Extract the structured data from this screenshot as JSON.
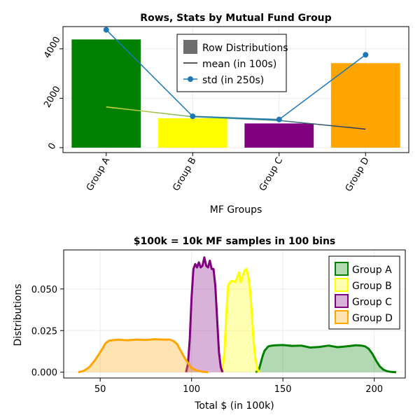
{
  "chart_data": [
    {
      "type": "bar",
      "title": "Rows, Stats by Mutual Fund Group",
      "xlabel": "MF Groups",
      "ylabel": "",
      "categories": [
        "Group A",
        "Group B",
        "Group C",
        "Group D"
      ],
      "ylim": [
        -200,
        4900
      ],
      "yticks": [
        0,
        2000,
        4000
      ],
      "ytick_labels": [
        "0",
        "2000",
        "4000"
      ],
      "grid": true,
      "legend_position": "top-center",
      "bar_colors": [
        "#008000",
        "#ffff00",
        "#800080",
        "#ffa500"
      ],
      "series": [
        {
          "name": "Row Distributions",
          "type": "bar",
          "values": [
            4380,
            1190,
            980,
            3420
          ]
        },
        {
          "name": "mean (in 100s)",
          "type": "line",
          "values": [
            1650,
            1250,
            1100,
            750
          ]
        },
        {
          "name": "std (in 250s)",
          "type": "line-marker",
          "color": "#1f77b4",
          "values": [
            4770,
            1270,
            1140,
            3760
          ]
        }
      ]
    },
    {
      "type": "area",
      "title": "$100k = 10k MF samples in 100 bins",
      "xlabel": "Total $ (in 100k)",
      "ylabel": "Distributions",
      "xlim": [
        30,
        217
      ],
      "ylim": [
        -0.0035,
        0.0735
      ],
      "xticks": [
        50,
        100,
        150,
        200
      ],
      "xtick_labels": [
        "50",
        "100",
        "150",
        "200"
      ],
      "yticks": [
        0,
        0.025,
        0.05
      ],
      "ytick_labels": [
        "0.000",
        "0.025",
        "0.050"
      ],
      "grid": true,
      "legend_position": "top-right",
      "series": [
        {
          "name": "Group A",
          "color": "#008000",
          "x": [
            135,
            136,
            137,
            138,
            139,
            140,
            142,
            144,
            146,
            150,
            155,
            160,
            165,
            170,
            175,
            180,
            185,
            190,
            193,
            195,
            197,
            199,
            201,
            203,
            205,
            207,
            209,
            212
          ],
          "y": [
            0,
            0.0005,
            0.002,
            0.006,
            0.01,
            0.013,
            0.0155,
            0.016,
            0.0162,
            0.0163,
            0.0158,
            0.016,
            0.0148,
            0.0152,
            0.016,
            0.015,
            0.0155,
            0.0162,
            0.016,
            0.0155,
            0.014,
            0.011,
            0.007,
            0.0035,
            0.0015,
            0.0006,
            0.0002,
            0
          ]
        },
        {
          "name": "Group B",
          "color": "#ffff00",
          "x": [
            116,
            117,
            118,
            119,
            120,
            121,
            122,
            124,
            125,
            126,
            127,
            128,
            129,
            130,
            131,
            132,
            133,
            134,
            135,
            136,
            137
          ],
          "y": [
            0,
            0.002,
            0.012,
            0.035,
            0.052,
            0.054,
            0.055,
            0.054,
            0.057,
            0.06,
            0.054,
            0.058,
            0.061,
            0.062,
            0.058,
            0.05,
            0.035,
            0.018,
            0.008,
            0.002,
            0
          ]
        },
        {
          "name": "Group C",
          "color": "#800080",
          "x": [
            97,
            98,
            99,
            100,
            101,
            102,
            103,
            104,
            105,
            106,
            107,
            108,
            109,
            110,
            111,
            112,
            113,
            114,
            115,
            116,
            117
          ],
          "y": [
            0,
            0.005,
            0.02,
            0.045,
            0.062,
            0.065,
            0.063,
            0.066,
            0.063,
            0.064,
            0.069,
            0.064,
            0.063,
            0.067,
            0.062,
            0.062,
            0.052,
            0.032,
            0.012,
            0.003,
            0
          ]
        },
        {
          "name": "Group D",
          "color": "#ffa500",
          "x": [
            38,
            41,
            44,
            47,
            50,
            53,
            55,
            60,
            65,
            70,
            75,
            80,
            85,
            88,
            90,
            92,
            94,
            96,
            98,
            100,
            103,
            106,
            109
          ],
          "y": [
            0,
            0.0008,
            0.003,
            0.007,
            0.012,
            0.0175,
            0.019,
            0.0195,
            0.0192,
            0.0196,
            0.0194,
            0.0198,
            0.0195,
            0.0196,
            0.0188,
            0.017,
            0.013,
            0.009,
            0.0055,
            0.0025,
            0.001,
            0.0003,
            0
          ]
        }
      ]
    }
  ]
}
